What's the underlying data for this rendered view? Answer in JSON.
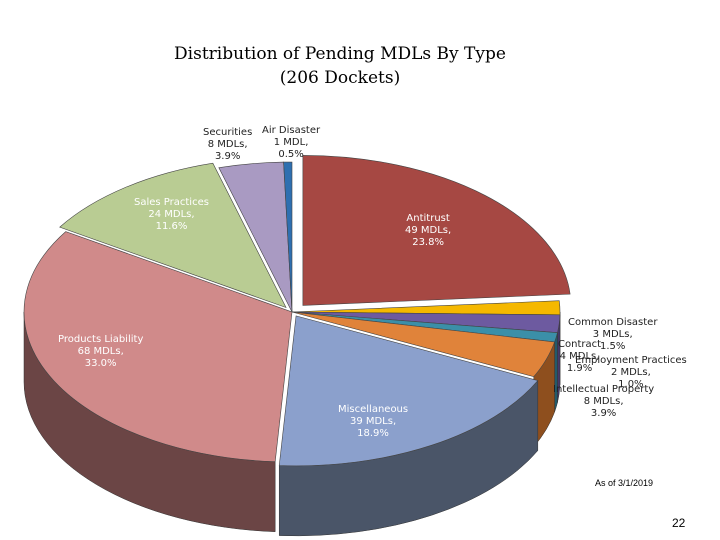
{
  "chart_data": {
    "type": "pie",
    "title": "Distribution of Pending MDLs By Type",
    "subtitle": "(206 Dockets)",
    "slices": [
      {
        "name": "Antitrust",
        "mdls": 49,
        "count_text": "49 MDLs,",
        "percent": 23.8,
        "percent_text": "23.8%",
        "color": "#a64843",
        "side": "#6e2c29"
      },
      {
        "name": "Common Disaster",
        "mdls": 3,
        "count_text": "3 MDLs,",
        "percent": 1.5,
        "percent_text": "1.5%",
        "color": "#f5b800",
        "side": "#a87e00"
      },
      {
        "name": "Contract",
        "mdls": 4,
        "count_text": "4 MDLs,",
        "percent": 1.9,
        "percent_text": "1.9%",
        "color": "#6d5aa0",
        "side": "#45386a"
      },
      {
        "name": "Employment Practices",
        "mdls": 2,
        "count_text": "2 MDLs,",
        "percent": 1.0,
        "percent_text": "1.0%",
        "color": "#3b8fa8",
        "side": "#235a6a"
      },
      {
        "name": "Intellectual Property",
        "mdls": 8,
        "count_text": "8 MDLs,",
        "percent": 3.9,
        "percent_text": "3.9%",
        "color": "#e0833a",
        "side": "#8e4f1e"
      },
      {
        "name": "Miscellaneous",
        "mdls": 39,
        "count_text": "39 MDLs,",
        "percent": 18.9,
        "percent_text": "18.9%",
        "color": "#8ba0cc",
        "side": "#4a5568"
      },
      {
        "name": "Products Liability",
        "mdls": 68,
        "count_text": "68 MDLs,",
        "percent": 33.0,
        "percent_text": "33.0%",
        "color": "#d08a8a",
        "side": "#6b4545"
      },
      {
        "name": "Sales Practices",
        "mdls": 24,
        "count_text": "24 MDLs,",
        "percent": 11.6,
        "percent_text": "11.6%",
        "color": "#b9cc93",
        "side": "#6e7d55"
      },
      {
        "name": "Securities",
        "mdls": 8,
        "count_text": "8 MDLs,",
        "percent": 3.9,
        "percent_text": "3.9%",
        "color": "#a99ac2",
        "side": "#5d5273"
      },
      {
        "name": "Air Disaster",
        "mdls": 1,
        "count_text": "1 MDL,",
        "percent": 0.5,
        "percent_text": "0.5%",
        "color": "#2e6fb0",
        "side": "#1b416a"
      }
    ]
  },
  "footer": {
    "as_of": "As of 3/1/2019",
    "page_number": "22"
  }
}
